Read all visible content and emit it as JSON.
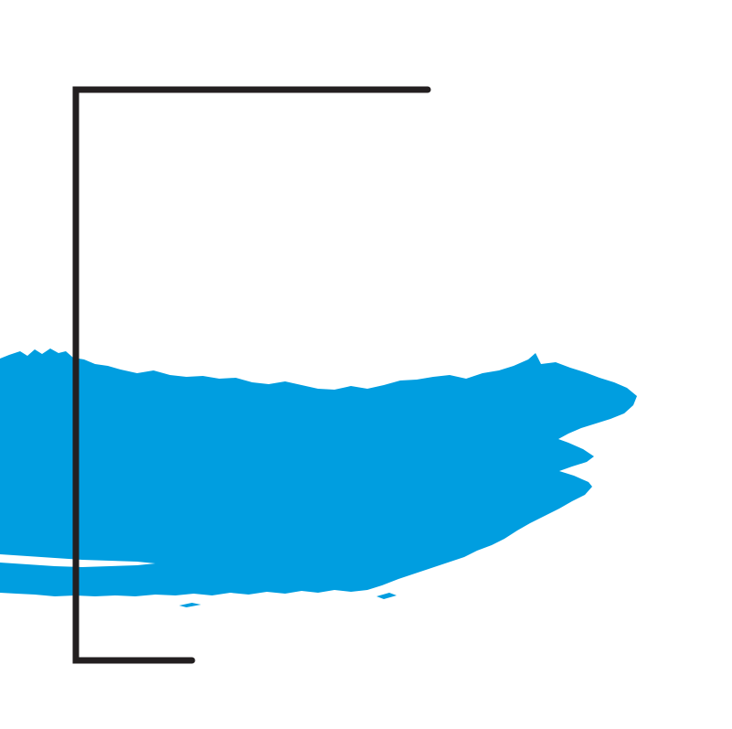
{
  "artwork": {
    "background_color": "#ffffff",
    "brush_color": "#009ee0",
    "frame_color": "#231f20",
    "elements": [
      "blue-brush-stroke",
      "bracket-frame"
    ]
  }
}
